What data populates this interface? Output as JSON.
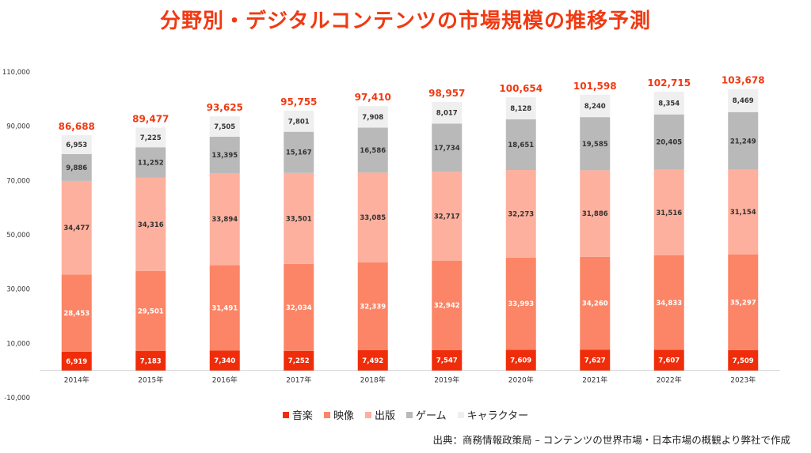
{
  "title": "分野別・デジタルコンテンツの市場規模の推移予測",
  "source": "出典：商務情報政策局 – コンテンツの世界市場・日本市場の概観より弊社で作成",
  "chart_data": {
    "type": "bar",
    "stacked": true,
    "categories": [
      "2014年",
      "2015年",
      "2016年",
      "2017年",
      "2018年",
      "2019年",
      "2020年",
      "2021年",
      "2022年",
      "2023年"
    ],
    "series": [
      {
        "name": "音楽",
        "color": "#f02d0a",
        "label_color": "#ffffff",
        "values": [
          6919,
          7183,
          7340,
          7252,
          7492,
          7547,
          7609,
          7627,
          7607,
          7509
        ]
      },
      {
        "name": "映像",
        "color": "#fb8566",
        "label_color": "#ffffff",
        "values": [
          28453,
          29501,
          31491,
          32034,
          32339,
          32942,
          33993,
          34260,
          34833,
          35297
        ]
      },
      {
        "name": "出版",
        "color": "#fdb09e",
        "label_color": "#333333",
        "values": [
          34477,
          34316,
          33894,
          33501,
          33085,
          32717,
          32273,
          31886,
          31516,
          31154
        ]
      },
      {
        "name": "ゲーム",
        "color": "#b9b9b9",
        "label_color": "#333333",
        "values": [
          9886,
          11252,
          13395,
          15167,
          16586,
          17734,
          18651,
          19585,
          20405,
          21249
        ]
      },
      {
        "name": "キャラクター",
        "color": "#efefef",
        "label_color": "#333333",
        "values": [
          6953,
          7225,
          7505,
          7801,
          7908,
          8017,
          8128,
          8240,
          8354,
          8469
        ]
      }
    ],
    "totals": [
      "86,688",
      "89,477",
      "93,625",
      "95,755",
      "97,410",
      "98,957",
      "100,654",
      "101,598",
      "102,715",
      "103,678"
    ],
    "total_color": "#f03a12",
    "yticks": [
      -10000,
      10000,
      30000,
      50000,
      70000,
      90000,
      110000
    ],
    "ytick_labels": [
      "-10,000",
      "10,000",
      "30,000",
      "50,000",
      "70,000",
      "90,000",
      "110,000"
    ],
    "ylim": [
      -10000,
      110000
    ],
    "grid": false,
    "legend_position": "bottom",
    "title": "",
    "xlabel": "",
    "ylabel": ""
  }
}
